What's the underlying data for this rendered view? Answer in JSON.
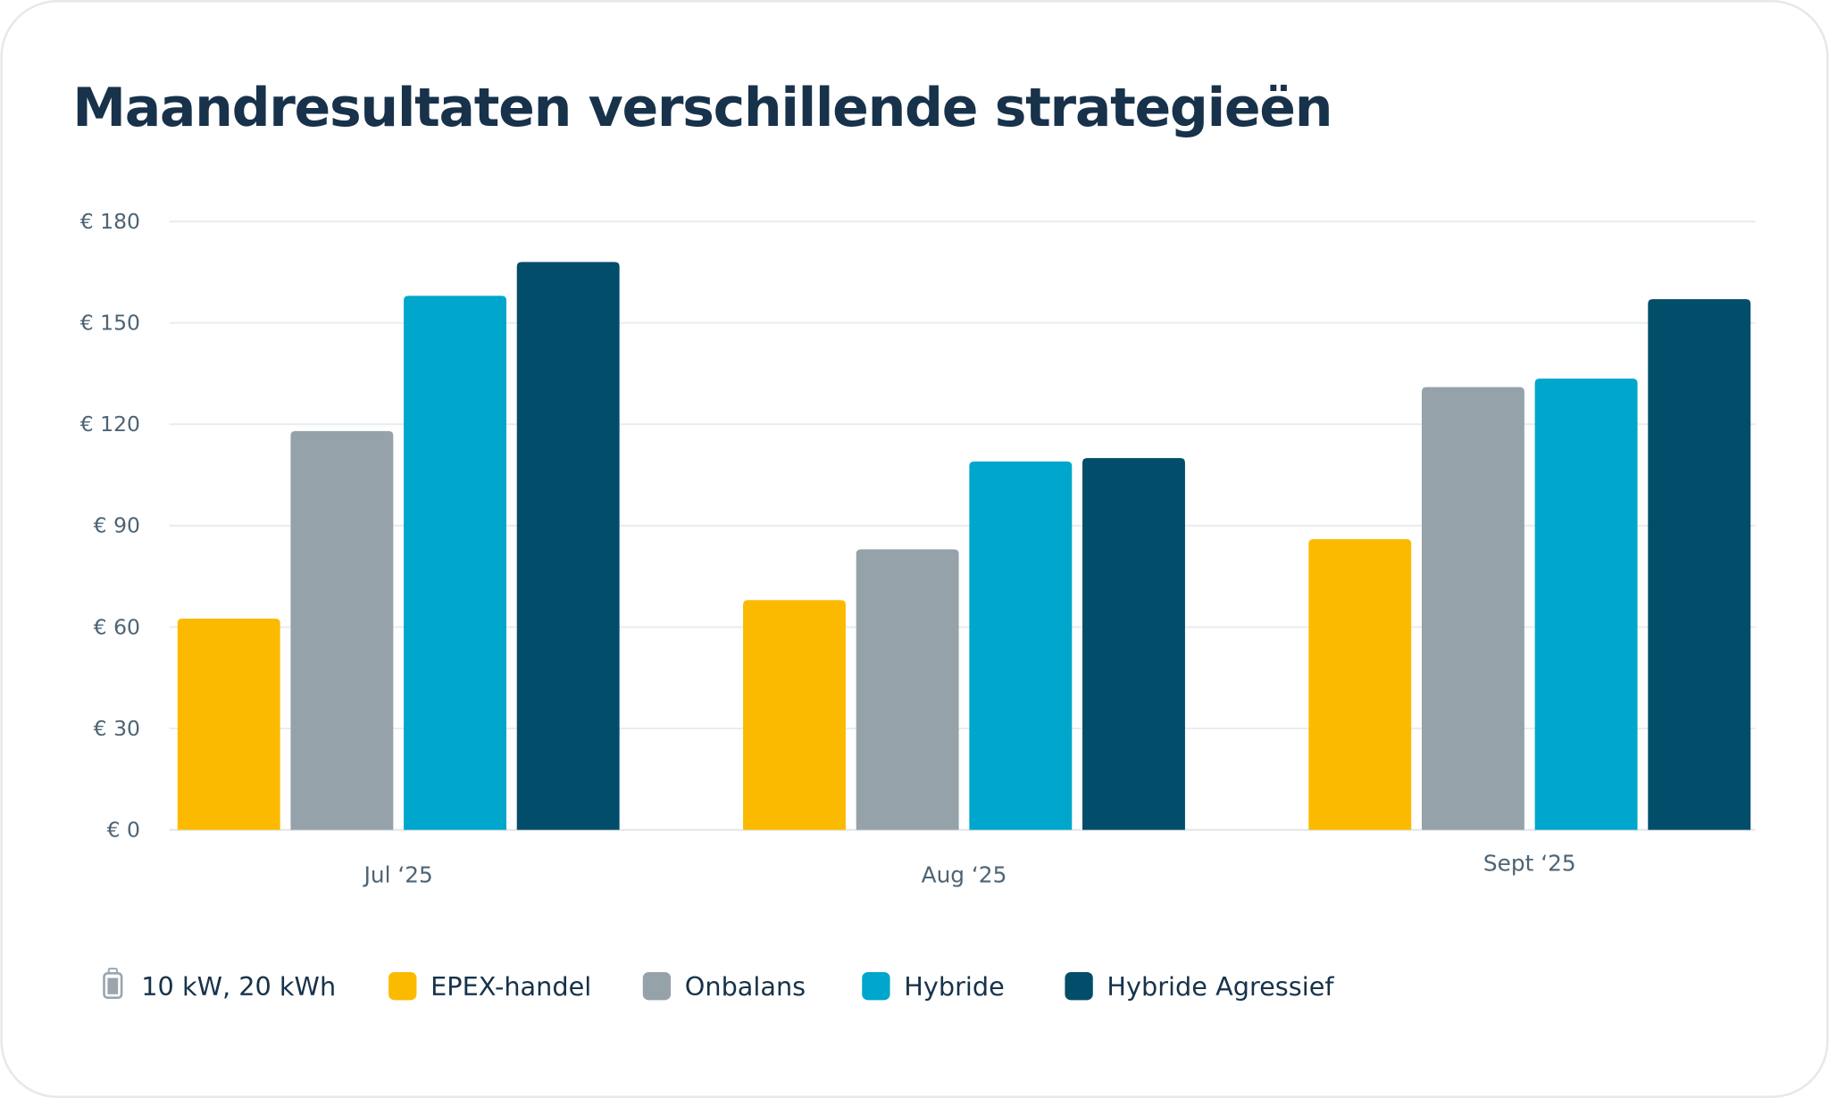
{
  "title": "Maandresultaten verschillende strategieën",
  "chart_data": {
    "type": "bar",
    "title": "Maandresultaten verschillende strategieën",
    "xlabel": "",
    "ylabel": "",
    "categories": [
      "Jul ‘25",
      "Aug ‘25",
      "Sept ‘25"
    ],
    "ylim": [
      0,
      180
    ],
    "yticks": [
      0,
      30,
      60,
      90,
      120,
      150,
      180
    ],
    "ytick_labels": [
      "€ 0",
      "€ 30",
      "€ 60",
      "€ 90",
      "€ 120",
      "€ 150",
      "€ 180"
    ],
    "grid": true,
    "legend_position": "bottom-left",
    "series": [
      {
        "name": "EPEX-handel",
        "color": "#fbba00",
        "values": [
          62.5,
          68,
          86
        ]
      },
      {
        "name": "Onbalans",
        "color": "#96a2aa",
        "values": [
          118,
          83,
          131
        ]
      },
      {
        "name": "Hybride",
        "color": "#00a6cb",
        "values": [
          158,
          109,
          133.5
        ]
      },
      {
        "name": "Hybride Agressief",
        "color": "#024d6a",
        "values": [
          168,
          110,
          157
        ]
      }
    ]
  },
  "legend": {
    "battery_icon": "battery-icon",
    "battery_label": "10 kW, 20 kWh"
  }
}
